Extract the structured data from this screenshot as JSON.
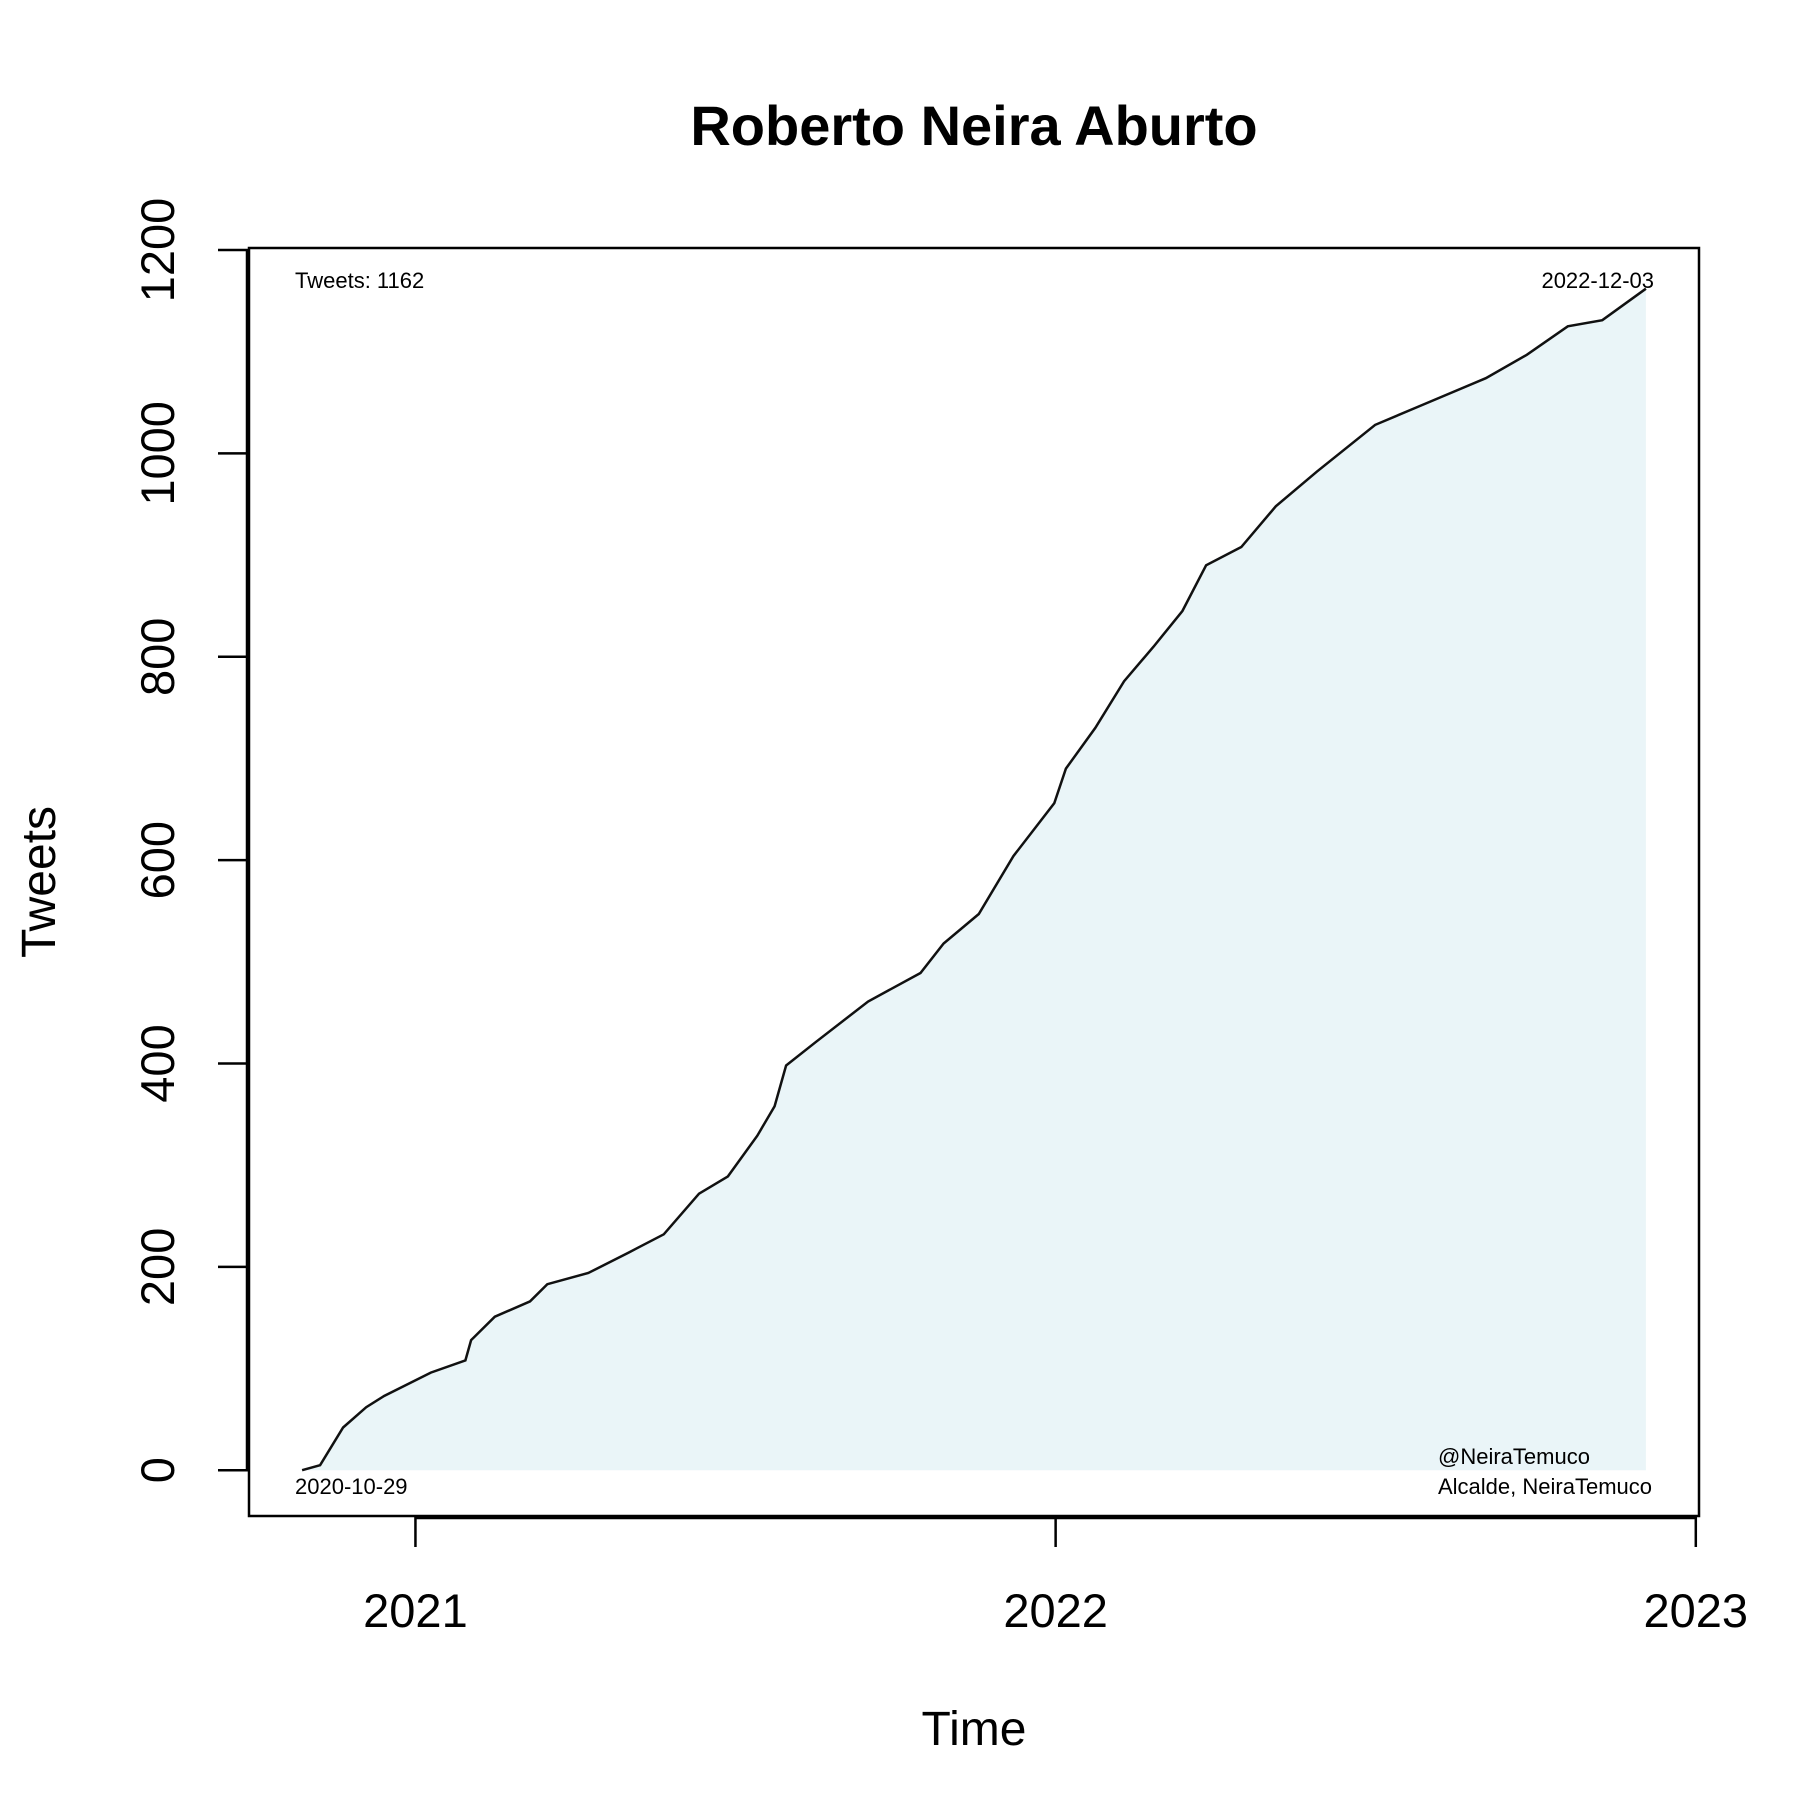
{
  "chart_data": {
    "type": "area",
    "title": "Roberto Neira Aburto",
    "x_label": "Time",
    "y_label": "Tweets",
    "x": [
      2020.823,
      2020.851,
      2020.887,
      2020.923,
      2020.951,
      2021.024,
      2021.078,
      2021.087,
      2021.124,
      2021.179,
      2021.206,
      2021.27,
      2021.333,
      2021.388,
      2021.443,
      2021.488,
      2021.534,
      2021.561,
      2021.579,
      2021.625,
      2021.707,
      2021.789,
      2021.825,
      2021.88,
      2021.934,
      2021.998,
      2022.016,
      2022.062,
      2022.107,
      2022.153,
      2022.198,
      2022.235,
      2022.29,
      2022.344,
      2022.408,
      2022.499,
      2022.563,
      2022.672,
      2022.736,
      2022.8,
      2022.854,
      2022.922
    ],
    "values": [
      0,
      5,
      42,
      62,
      73,
      96,
      108,
      128,
      151,
      166,
      183,
      194,
      214,
      232,
      272,
      289,
      329,
      358,
      398,
      421,
      461,
      489,
      518,
      547,
      604,
      656,
      690,
      730,
      776,
      810,
      845,
      890,
      908,
      948,
      982,
      1028,
      1045,
      1074,
      1097,
      1125,
      1131,
      1162
    ],
    "color": "#111111",
    "fill_color": "#eaf5f8",
    "xlim": [
      2020.74,
      2023.005
    ],
    "xticks": [
      2021,
      2022,
      2023
    ],
    "ylim": [
      -45,
      1202
    ],
    "yticks": [
      0,
      200,
      400,
      600,
      800,
      1000,
      1200
    ],
    "annotations": {
      "top_left": "Tweets: 1162",
      "top_right": "2022-12-03",
      "bottom_left": "2020-10-29",
      "bottom_right_1": "@NeiraTemuco",
      "bottom_right_2": "Alcalde, NeiraTemuco"
    }
  }
}
